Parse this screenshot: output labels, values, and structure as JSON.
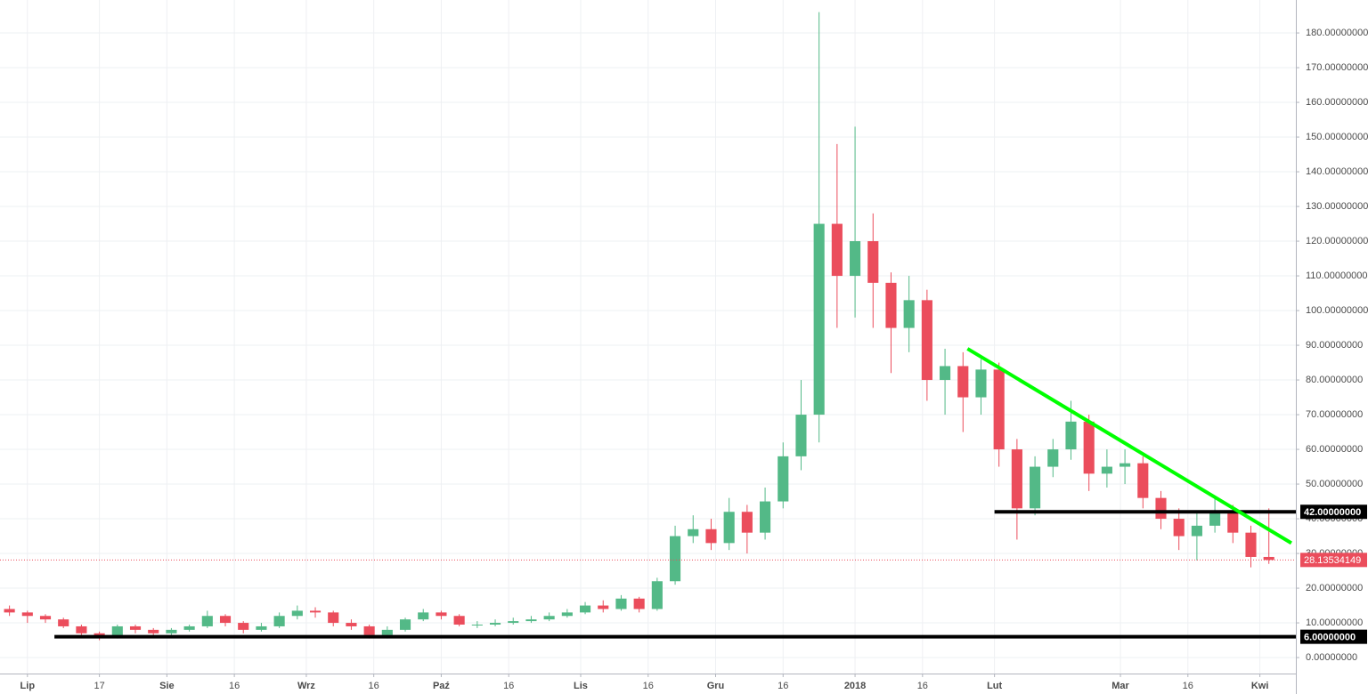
{
  "chart_data": {
    "type": "candlestick",
    "up_color": "#53b987",
    "down_color": "#eb4d5c",
    "grid": true,
    "xlim": [
      -6.1,
      282
    ],
    "ylim": [
      -4.6,
      189.5
    ],
    "xticks": [
      {
        "value": 0,
        "label": "Lip"
      },
      {
        "value": 16,
        "label": "17"
      },
      {
        "value": 31,
        "label": "Sie"
      },
      {
        "value": 46,
        "label": "16"
      },
      {
        "value": 62,
        "label": "Wrz"
      },
      {
        "value": 77,
        "label": "16"
      },
      {
        "value": 92,
        "label": "Paź"
      },
      {
        "value": 107,
        "label": "16"
      },
      {
        "value": 123,
        "label": "Lis"
      },
      {
        "value": 138,
        "label": "16"
      },
      {
        "value": 153,
        "label": "Gru"
      },
      {
        "value": 168,
        "label": "16"
      },
      {
        "value": 184,
        "label": "2018"
      },
      {
        "value": 199,
        "label": "16"
      },
      {
        "value": 215,
        "label": "Lut"
      },
      {
        "value": 243,
        "label": "Mar"
      },
      {
        "value": 258,
        "label": "16"
      },
      {
        "value": 274,
        "label": "Kwi"
      }
    ],
    "yticks": [
      {
        "value": 0,
        "label": "0.00000000"
      },
      {
        "value": 10,
        "label": "10.00000000"
      },
      {
        "value": 20,
        "label": "20.00000000"
      },
      {
        "value": 30,
        "label": "30.00000000"
      },
      {
        "value": 40,
        "label": "40.00000000"
      },
      {
        "value": 50,
        "label": "50.00000000"
      },
      {
        "value": 60,
        "label": "60.00000000"
      },
      {
        "value": 70,
        "label": "70.00000000"
      },
      {
        "value": 80,
        "label": "80.00000000"
      },
      {
        "value": 90,
        "label": "90.00000000"
      },
      {
        "value": 100,
        "label": "100.00000000"
      },
      {
        "value": 110,
        "label": "110.00000000"
      },
      {
        "value": 120,
        "label": "120.00000000"
      },
      {
        "value": 130,
        "label": "130.00000000"
      },
      {
        "value": 140,
        "label": "140.00000000"
      },
      {
        "value": 150,
        "label": "150.00000000"
      },
      {
        "value": 160,
        "label": "160.00000000"
      },
      {
        "value": 170,
        "label": "170.00000000"
      },
      {
        "value": 180,
        "label": "180.00000000"
      }
    ],
    "x": [
      -4,
      0,
      4,
      8,
      12,
      16,
      20,
      24,
      28,
      32,
      36,
      40,
      44,
      48,
      52,
      56,
      60,
      64,
      68,
      72,
      76,
      80,
      84,
      88,
      92,
      96,
      100,
      104,
      108,
      112,
      116,
      120,
      124,
      128,
      132,
      136,
      140,
      144,
      148,
      152,
      156,
      160,
      164,
      168,
      172,
      176,
      180,
      184,
      188,
      192,
      196,
      200,
      204,
      208,
      212,
      216,
      220,
      224,
      228,
      232,
      236,
      240,
      244,
      248,
      252,
      256,
      260,
      264,
      268,
      272,
      276
    ],
    "open": [
      14,
      13,
      12,
      11,
      9,
      7,
      6,
      9,
      8,
      7,
      8,
      9,
      12,
      10,
      8,
      9,
      12,
      13.5,
      13,
      10,
      9,
      6.5,
      8,
      11,
      13,
      12,
      9.5,
      9.5,
      10,
      10.5,
      11,
      12,
      13,
      15,
      14,
      17,
      14,
      22,
      35,
      37,
      33,
      42,
      36,
      45,
      58,
      70,
      125,
      110,
      120,
      108,
      95,
      103,
      80,
      84,
      75,
      83,
      60,
      43,
      55,
      60,
      68,
      53,
      55,
      56,
      46,
      40,
      35,
      38,
      42,
      36,
      29
    ],
    "high": [
      15,
      13.5,
      12.5,
      11.5,
      9.5,
      7.5,
      9.5,
      9.5,
      8.5,
      8.5,
      9.5,
      13.5,
      12.5,
      10.5,
      10,
      13,
      15,
      14.5,
      13.5,
      11,
      9.5,
      9,
      11.5,
      14,
      13.5,
      12.5,
      10.5,
      11,
      11.5,
      12,
      13,
      14,
      16,
      16.5,
      18,
      17.5,
      23,
      38,
      41,
      40,
      46,
      44,
      49,
      62,
      80,
      186,
      148,
      153,
      128,
      111,
      110,
      106,
      89,
      88,
      86,
      85,
      63,
      58,
      63,
      74,
      70,
      60,
      60,
      58,
      48,
      43,
      42,
      46,
      44,
      38,
      43
    ],
    "low": [
      12,
      10,
      10,
      8.5,
      6.5,
      5,
      5.5,
      7,
      6,
      6.5,
      7.5,
      8.5,
      9,
      7,
      7.5,
      8.5,
      11,
      11.5,
      9,
      8,
      5.5,
      5.5,
      7.5,
      10.5,
      11,
      9,
      8.5,
      9,
      9.5,
      10,
      10.5,
      11.5,
      12.5,
      13,
      13.5,
      13,
      13.5,
      21,
      33,
      31,
      31,
      30,
      34,
      43,
      54,
      62,
      95,
      98,
      95,
      82,
      88,
      74,
      70,
      65,
      70,
      55,
      34,
      41,
      52,
      57,
      48,
      49,
      50,
      43,
      37,
      31,
      28,
      36,
      33,
      26,
      27
    ],
    "close": [
      13,
      12,
      11,
      9,
      7,
      6,
      9,
      8,
      7,
      8,
      9,
      12,
      10,
      8,
      9,
      12,
      13.5,
      13,
      10,
      9,
      6.5,
      8,
      11,
      13,
      12,
      9.5,
      9.5,
      10,
      10.5,
      11,
      12,
      13,
      15,
      14,
      17,
      14,
      22,
      35,
      37,
      33,
      42,
      36,
      45,
      58,
      70,
      125,
      110,
      120,
      108,
      95,
      103,
      80,
      84,
      75,
      83,
      60,
      43,
      55,
      60,
      68,
      53,
      55,
      56,
      46,
      40,
      35,
      38,
      42,
      36,
      29,
      28.13534149
    ],
    "trendline": {
      "x": [
        209,
        281
      ],
      "values": [
        89,
        33
      ],
      "color": "#00ff00"
    },
    "levels": [
      {
        "value": 42,
        "label": "42.00000000",
        "x_start": 215,
        "color": "#000000"
      },
      {
        "value": 6,
        "label": "6.00000000",
        "x_start": 6,
        "color": "#000000"
      }
    ],
    "last_price": {
      "value": 28.13534149,
      "label": "28.13534149",
      "color": "#eb4d5c"
    }
  }
}
